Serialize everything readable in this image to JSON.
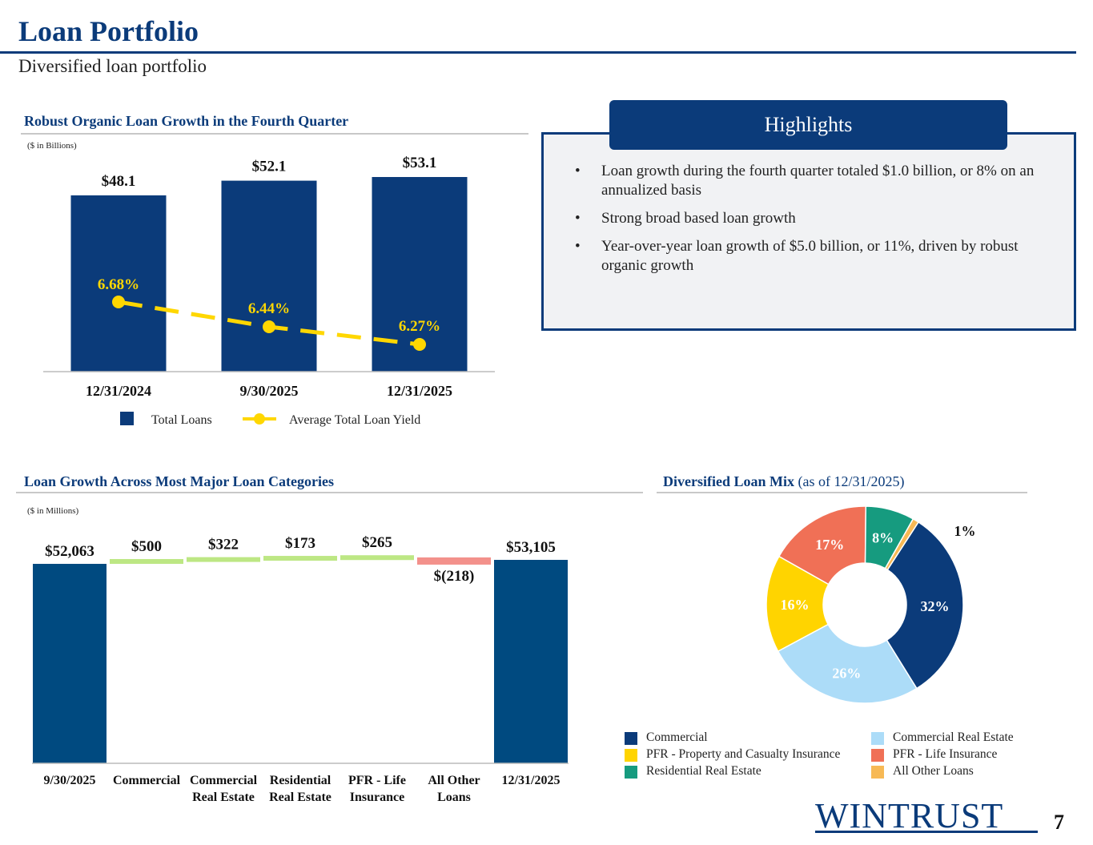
{
  "header": {
    "title": "Loan Portfolio",
    "subtitle": "Diversified loan portfolio"
  },
  "colors": {
    "navy": "#0b3b7a",
    "bar_dark": "#0b3b7a",
    "waterfall_blue": "#004a80",
    "yield_gold": "#ffd700",
    "increase_green": "#bde784",
    "decrease_red": "#f3918b",
    "commercial": "#0b3b7a",
    "commercial_real_estate": "#acdcf8",
    "pfr_pc": "#ffd400",
    "pfr_life": "#f07056",
    "residential_real_estate": "#169b7f",
    "all_other_loans": "#f7b955"
  },
  "sections": {
    "growth_title": "Robust Organic Loan Growth in the Fourth Quarter",
    "growth_unit": "($ in Billions)",
    "categories_title": "Loan Growth Across Most Major Loan Categories",
    "categories_unit": "($ in Millions)",
    "mix_title_bold": "Diversified Loan Mix",
    "mix_title_rest": " (as of 12/31/2025)"
  },
  "highlights": {
    "title": "Highlights",
    "items": [
      "Loan growth during the fourth quarter totaled $1.0 billion, or 8% on an annualized basis",
      "Strong broad based loan growth",
      "Year-over-year loan growth of $5.0 billion, or 11%, driven by robust organic growth"
    ],
    "bullet": "•"
  },
  "legend": {
    "total_loans": "Total Loans",
    "avg_yield": "Average Total Loan Yield"
  },
  "chart_data": [
    {
      "type": "bar",
      "categories": [
        "12/31/2024",
        "9/30/2025",
        "12/31/2025"
      ],
      "series": [
        {
          "name": "Total Loans",
          "values": [
            48.1,
            52.1,
            53.1
          ],
          "labels": [
            "$48.1",
            "$52.1",
            "$53.1"
          ]
        },
        {
          "name": "Average Total Loan Yield",
          "values": [
            6.68,
            6.44,
            6.27
          ],
          "labels": [
            "6.68%",
            "6.44%",
            "6.27%"
          ],
          "style": "dashed-line"
        }
      ],
      "title": "Robust Organic Loan Growth in the Fourth Quarter",
      "ylabel": "($ in Billions)",
      "legend": "bottom"
    },
    {
      "type": "bar",
      "subtype": "waterfall",
      "categories": [
        [
          "9/30/2025"
        ],
        [
          "Commercial"
        ],
        [
          "Commercial",
          "Real Estate"
        ],
        [
          "Residential",
          "Real Estate"
        ],
        [
          "PFR - Life",
          "Insurance"
        ],
        [
          "All Other",
          "Loans"
        ],
        [
          "12/31/2025"
        ]
      ],
      "values": [
        52063,
        500,
        322,
        173,
        265,
        -218,
        53105
      ],
      "labels": [
        "$52,063",
        "$500",
        "$322",
        "$173",
        "$265",
        "$(218)",
        "$53,105"
      ],
      "kinds": [
        "total",
        "increase",
        "increase",
        "increase",
        "increase",
        "decrease",
        "total"
      ],
      "title": "Loan Growth Across Most Major Loan Categories",
      "ylabel": "($ in Millions)"
    },
    {
      "type": "pie",
      "subtype": "donut",
      "title": "Diversified Loan Mix (as of 12/31/2025)",
      "slices": [
        {
          "name": "Commercial",
          "value": 32,
          "label": "32%",
          "color": "#0b3b7a"
        },
        {
          "name": "Commercial Real Estate",
          "value": 26,
          "label": "26%",
          "color": "#acdcf8"
        },
        {
          "name": "PFR - Property and Casualty Insurance",
          "value": 16,
          "label": "16%",
          "color": "#ffd400"
        },
        {
          "name": "PFR - Life Insurance",
          "value": 17,
          "label": "17%",
          "color": "#f07056"
        },
        {
          "name": "Residential Real Estate",
          "value": 8,
          "label": "8%",
          "color": "#169b7f"
        },
        {
          "name": "All Other Loans",
          "value": 1,
          "label": "1%",
          "color": "#f7b955"
        }
      ],
      "legend_order": [
        "Commercial",
        "Commercial Real Estate",
        "PFR - Property and Casualty Insurance",
        "PFR - Life Insurance",
        "Residential Real Estate",
        "All Other Loans"
      ]
    }
  ],
  "footer": {
    "logo_text": "WINTRUST",
    "page_number": "7"
  }
}
